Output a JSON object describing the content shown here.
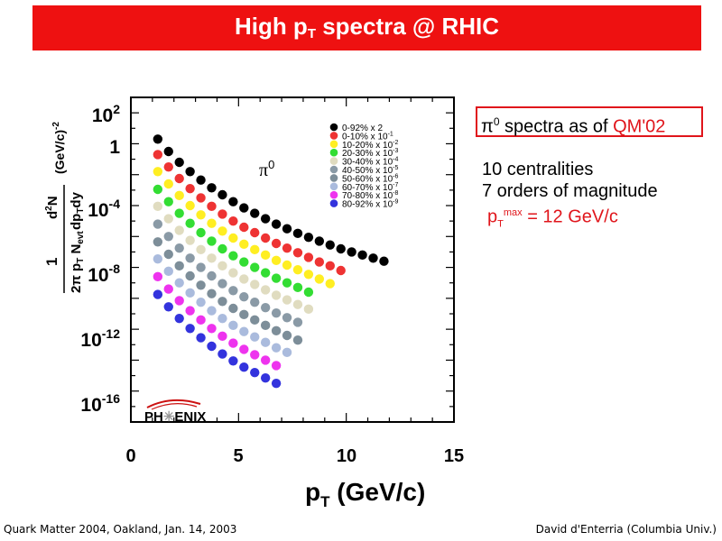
{
  "slide": {
    "title_main": "High p",
    "title_sub": "T",
    "title_rest": " spectra @ RHIC",
    "footer_left": "Quark Matter 2004, Oakland, Jan. 14, 2003",
    "footer_right": "David d'Enterria (Columbia Univ.)"
  },
  "callout": {
    "prefix": "π",
    "sup": "0",
    "middle": " spectra as of ",
    "highlight": "QM'02"
  },
  "notes": {
    "line1": "10 centralities",
    "line2": "7 orders of magnitude",
    "pt_main": "p",
    "pt_sub": "T",
    "pt_sup": "max",
    "pt_rest": " = 12 GeV/c"
  },
  "chart_data": {
    "type": "scatter",
    "xlabel": "p_T (GeV/c)",
    "ylabel": "1/(2π p_T N_evt) d²N/(dp_T dy) (GeV/c)^-2",
    "xlim": [
      0,
      15
    ],
    "ylim": [
      -18,
      3
    ],
    "y_scale": "log10",
    "x_ticks": [
      0,
      5,
      10,
      15
    ],
    "y_ticks": [
      "10^2",
      "1",
      "10^-4",
      "10^-8",
      "10^-12",
      "10^-16"
    ],
    "annotation": "π0",
    "logo": "PHENIX",
    "legend_placement": "top-right",
    "x": [
      1.25,
      1.75,
      2.25,
      2.75,
      3.25,
      3.75,
      4.25,
      4.75,
      5.25,
      5.75,
      6.25,
      6.75,
      7.25,
      7.75,
      8.25,
      8.75,
      9.25,
      9.75,
      10.25,
      10.75,
      11.25,
      11.75
    ],
    "series": [
      {
        "name": "0-92% x 2",
        "color": "#000000",
        "log10_y": [
          0.3,
          -0.5,
          -1.2,
          -1.8,
          -2.35,
          -2.85,
          -3.3,
          -3.75,
          -4.15,
          -4.5,
          -4.85,
          -5.2,
          -5.5,
          -5.8,
          -6.05,
          -6.3,
          -6.55,
          -6.8,
          -7.0,
          -7.2,
          -7.4,
          -7.6
        ]
      },
      {
        "name": "0-10% x 10^-1",
        "color": "#ee3333",
        "log10_y": [
          -0.7,
          -1.5,
          -2.25,
          -2.9,
          -3.5,
          -4.05,
          -4.55,
          -5.0,
          -5.4,
          -5.75,
          -6.1,
          -6.45,
          -6.75,
          -7.05,
          -7.35,
          -7.65,
          -7.9,
          -8.2
        ]
      },
      {
        "name": "10-20% x 10^-2",
        "color": "#ffee22",
        "log10_y": [
          -1.8,
          -2.6,
          -3.35,
          -4.0,
          -4.6,
          -5.15,
          -5.65,
          -6.1,
          -6.5,
          -6.85,
          -7.2,
          -7.55,
          -7.85,
          -8.15,
          -8.45,
          -8.75,
          -9.05
        ]
      },
      {
        "name": "20-30% x 10^-3",
        "color": "#33dd33",
        "log10_y": [
          -2.95,
          -3.75,
          -4.5,
          -5.15,
          -5.75,
          -6.3,
          -6.8,
          -7.25,
          -7.65,
          -8.0,
          -8.35,
          -8.7,
          -9.0,
          -9.3,
          -9.6
        ]
      },
      {
        "name": "30-40% x 10^-4",
        "color": "#e0dcc0",
        "log10_y": [
          -4.05,
          -4.85,
          -5.6,
          -6.25,
          -6.85,
          -7.4,
          -7.9,
          -8.35,
          -8.75,
          -9.1,
          -9.45,
          -9.8,
          -10.1,
          -10.4,
          -10.7
        ]
      },
      {
        "name": "40-50% x 10^-5",
        "color": "#8a9aa6",
        "log10_y": [
          -5.2,
          -6.0,
          -6.75,
          -7.4,
          -8.0,
          -8.55,
          -9.05,
          -9.5,
          -9.9,
          -10.25,
          -10.6,
          -10.95,
          -11.25,
          -11.55
        ]
      },
      {
        "name": "50-60% x 10^-6",
        "color": "#7d8e99",
        "log10_y": [
          -6.35,
          -7.15,
          -7.9,
          -8.55,
          -9.15,
          -9.7,
          -10.2,
          -10.65,
          -11.05,
          -11.4,
          -11.75,
          -12.1,
          -12.4,
          -12.7
        ]
      },
      {
        "name": "60-70% x 10^-7",
        "color": "#aabbdd",
        "log10_y": [
          -7.45,
          -8.25,
          -9.0,
          -9.65,
          -10.25,
          -10.8,
          -11.3,
          -11.75,
          -12.15,
          -12.5,
          -12.85,
          -13.2,
          -13.5
        ]
      },
      {
        "name": "70-80% x 10^-8",
        "color": "#ee33ee",
        "log10_y": [
          -8.6,
          -9.4,
          -10.15,
          -10.8,
          -11.4,
          -11.95,
          -12.45,
          -12.9,
          -13.3,
          -13.65,
          -14.0,
          -14.35
        ]
      },
      {
        "name": "80-92% x 10^-9",
        "color": "#3333dd",
        "log10_y": [
          -9.75,
          -10.55,
          -11.3,
          -11.95,
          -12.55,
          -13.1,
          -13.6,
          -14.05,
          -14.45,
          -14.8,
          -15.15,
          -15.5
        ]
      }
    ]
  }
}
